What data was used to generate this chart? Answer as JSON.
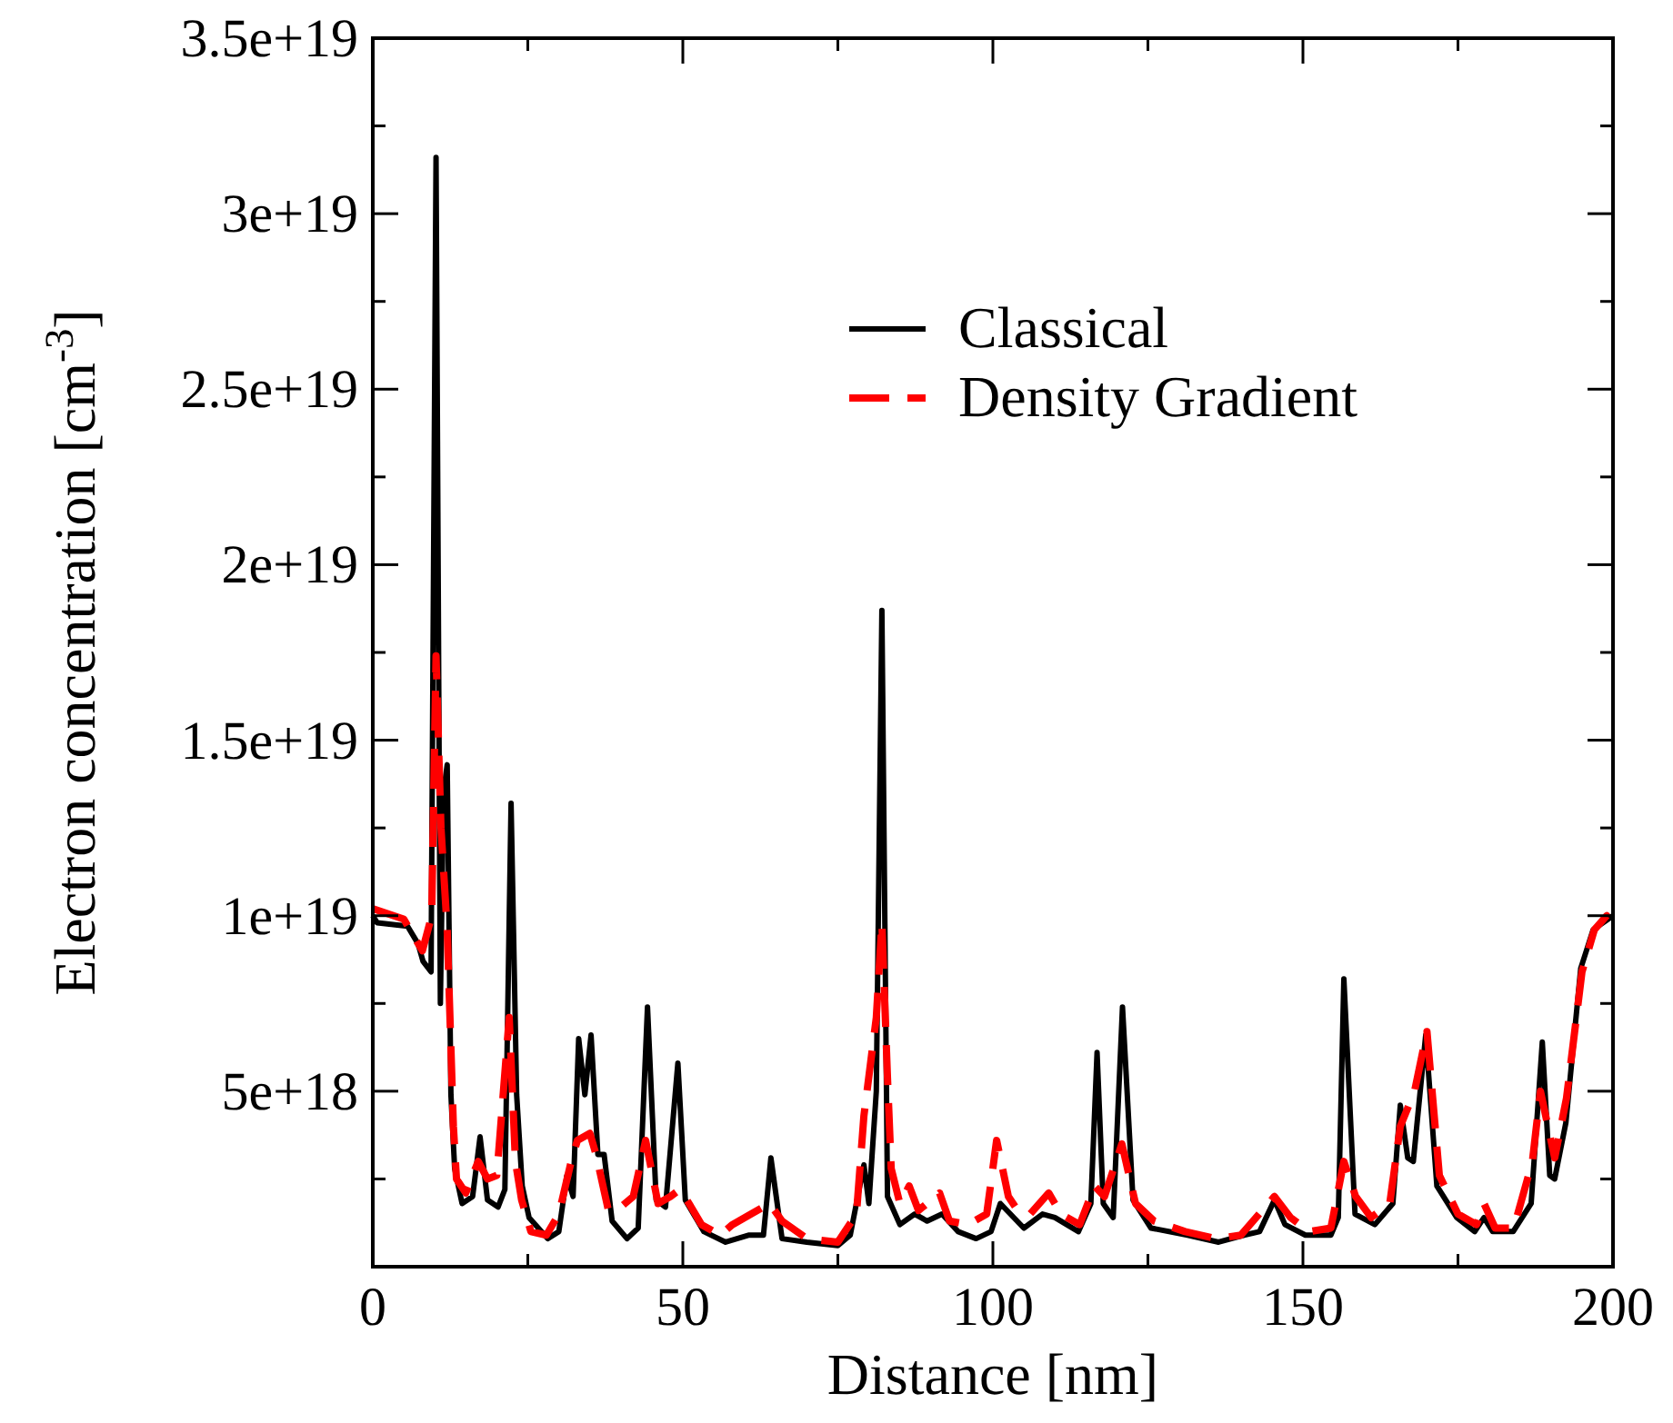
{
  "chart_data": {
    "type": "line",
    "xlabel": "Distance [nm]",
    "ylabel": "Electron concentration [cm$^{-3}$]",
    "xlim": [
      0,
      200
    ],
    "xticks": [
      0,
      {
        "value": 25,
        "label": null
      },
      50,
      {
        "value": 75,
        "label": null
      },
      100,
      {
        "value": 125,
        "label": null
      },
      150,
      {
        "value": 175,
        "label": null
      },
      200
    ],
    "ylim": [
      0,
      3.5e+19
    ],
    "yticks": [
      {
        "value": 2.5e+18,
        "label": null
      },
      {
        "value": 5e+18,
        "label": "5e+18"
      },
      {
        "value": 7.5e+18,
        "label": null
      },
      {
        "value": 1e+19,
        "label": "1e+19"
      },
      {
        "value": 1.25e+19,
        "label": null
      },
      {
        "value": 1.5e+19,
        "label": "1.5e+19"
      },
      {
        "value": 1.75e+19,
        "label": null
      },
      {
        "value": 2e+19,
        "label": "2e+19"
      },
      {
        "value": 2.25e+19,
        "label": null
      },
      {
        "value": 2.5e+19,
        "label": "2.5e+19"
      },
      {
        "value": 2.75e+19,
        "label": null
      },
      {
        "value": 3e+19,
        "label": "3e+19"
      },
      {
        "value": 3.25e+19,
        "label": null
      },
      {
        "value": 3.5e+19,
        "label": "3.5e+19"
      }
    ],
    "grid": false,
    "legend": "top right",
    "series": [
      {
        "name": "Classical",
        "color": "#000000",
        "line_style": "solid",
        "x": [
          0,
          0.7,
          5.6,
          7.3,
          8.1,
          9.4,
          10.2,
          10.9,
          11.4,
          12,
          12.6,
          13.2,
          14.4,
          16.1,
          17.3,
          18.5,
          20.2,
          21.3,
          22.3,
          23.2,
          24.1,
          25.2,
          28.2,
          30,
          31.3,
          32.3,
          33.2,
          34.2,
          35.2,
          36.3,
          37.3,
          38.6,
          41,
          42.8,
          44.3,
          45.7,
          47.2,
          49.2,
          50.4,
          53.4,
          56.9,
          60.7,
          63,
          64.2,
          66,
          70,
          75,
          77,
          79.2,
          80,
          81.2,
          82.1,
          83,
          85,
          87.4,
          89.4,
          91.8,
          94.4,
          97.3,
          99.7,
          101.2,
          105,
          108,
          110,
          113.8,
          115.8,
          116.8,
          117.8,
          119.4,
          120.9,
          122.6,
          125.5,
          131.4,
          136.4,
          140.5,
          143,
          145.4,
          147.1,
          150.4,
          154.5,
          155.7,
          156.6,
          158.4,
          161.6,
          164.5,
          165.7,
          166.9,
          167.8,
          169.8,
          171.6,
          174.8,
          177.7,
          179.2,
          180.6,
          183.9,
          186.8,
          188.6,
          189.8,
          190.6,
          192.4,
          194.8,
          196.8,
          200
        ],
        "values": [
          1e+19,
          9.8e+18,
          9.7e+18,
          9.2e+18,
          8.7e+18,
          8.4e+18,
          3.16e+19,
          7.5e+18,
          1.35e+19,
          1.43e+19,
          4.9e+18,
          2.8e+18,
          1.8e+18,
          2e+18,
          3.7e+18,
          1.9e+18,
          1.7e+18,
          2.2e+18,
          1.32e+19,
          4.9e+18,
          2.3e+18,
          1.4e+18,
          8e+17,
          1e+18,
          2.6e+18,
          2e+18,
          6.5e+18,
          4.9e+18,
          6.6e+18,
          3.2e+18,
          3.2e+18,
          1.3e+18,
          8e+17,
          1.1e+18,
          7.4e+18,
          1.9e+18,
          1.7e+18,
          5.8e+18,
          1.9e+18,
          1e+18,
          7e+17,
          9e+17,
          9e+17,
          3.1e+18,
          8e+17,
          7e+17,
          6e+17,
          9e+17,
          2.9e+18,
          1.8e+18,
          5e+18,
          1.87e+19,
          2e+18,
          1.2e+18,
          1.5e+18,
          1.3e+18,
          1.5e+18,
          1e+18,
          8e+17,
          1e+18,
          1.8e+18,
          1.1e+18,
          1.5e+18,
          1.4e+18,
          1e+18,
          1.8e+18,
          6.1e+18,
          1.8e+18,
          1.4e+18,
          7.4e+18,
          1.9e+18,
          1.1e+18,
          9e+17,
          7e+17,
          9e+17,
          1e+18,
          1.9e+18,
          1.2e+18,
          9e+17,
          9e+17,
          1.4e+18,
          8.2e+18,
          1.5e+18,
          1.2e+18,
          1.8e+18,
          4.6e+18,
          3.1e+18,
          3e+18,
          6.6e+18,
          2.3e+18,
          1.4e+18,
          1e+18,
          1.4e+18,
          1e+18,
          1e+18,
          1.8e+18,
          6.4e+18,
          2.6e+18,
          2.5e+18,
          4.1e+18,
          8.5e+18,
          9.6e+18,
          1e+19
        ]
      },
      {
        "name": "Density Gradient",
        "color": "#ff0000",
        "line_style": "dashed",
        "x": [
          0,
          5,
          8,
          9.5,
          10.2,
          11,
          12,
          13,
          13.5,
          15,
          17,
          18.5,
          20,
          22,
          23,
          24,
          25.5,
          28,
          30,
          32,
          33,
          35,
          36,
          38,
          40,
          42,
          44,
          46,
          48,
          49.5,
          51,
          53,
          56,
          58,
          61,
          64,
          66,
          70,
          75,
          78,
          79.2,
          81.2,
          82.1,
          83,
          83.6,
          85,
          86.5,
          88,
          91.4,
          93,
          96,
          99,
          100.6,
          102.5,
          104,
          106,
          109,
          111,
          114,
          116.4,
          118,
          120.8,
          123,
          126,
          131,
          136,
          140,
          145.4,
          148,
          151,
          154.5,
          156.6,
          158.5,
          161,
          164,
          165.7,
          168,
          170,
          172,
          175,
          178,
          179.2,
          181,
          184,
          187,
          188.3,
          190.6,
          192.5,
          195,
          197,
          199,
          200
        ],
        "values": [
          1.02e+19,
          9.9e+18,
          9e+18,
          1e+19,
          1.74e+19,
          1.25e+19,
          9.6e+18,
          4e+18,
          2.5e+18,
          2.1e+18,
          3e+18,
          2.5e+18,
          2.6e+18,
          7.1e+18,
          3e+18,
          1.9e+18,
          1e+18,
          9e+17,
          1.5e+18,
          3e+18,
          3.6e+18,
          3.8e+18,
          3.2e+18,
          1.6e+18,
          1.7e+18,
          2e+18,
          3.6e+18,
          1.8e+18,
          2e+18,
          2.2e+18,
          1.8e+18,
          1.2e+18,
          9e+17,
          1.2e+18,
          1.5e+18,
          1.8e+18,
          1.3e+18,
          8e+17,
          7e+17,
          1.5e+18,
          4.3e+18,
          7.1e+18,
          9.8e+18,
          5.4e+18,
          2.8e+18,
          1.8e+18,
          2.3e+18,
          1.6e+18,
          2.1e+18,
          1.3e+18,
          1.2e+18,
          1.5e+18,
          3.6e+18,
          2e+18,
          1.6e+18,
          1.5e+18,
          2.1e+18,
          1.5e+18,
          1.2e+18,
          2.3e+18,
          2e+18,
          3.5e+18,
          1.8e+18,
          1.3e+18,
          1e+18,
          8e+17,
          9e+17,
          2e+18,
          1.4e+18,
          1e+18,
          1.1e+18,
          3e+18,
          2e+18,
          1.4e+18,
          1.8e+18,
          4e+18,
          5e+18,
          6.7e+18,
          2.6e+18,
          1.5e+18,
          1.2e+18,
          1.8e+18,
          1.1e+18,
          1.1e+18,
          3e+18,
          5e+18,
          3.1e+18,
          4.8e+18,
          8.4e+18,
          9.6e+18,
          1e+19,
          9.6e+18
        ]
      }
    ]
  }
}
